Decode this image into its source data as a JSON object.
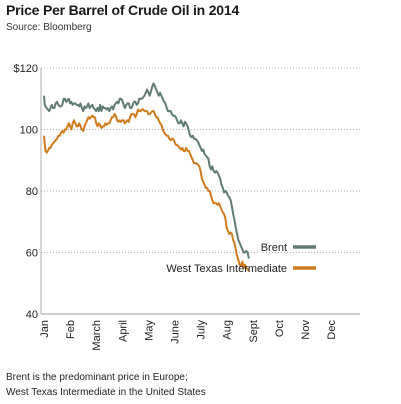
{
  "chart_data": {
    "type": "line",
    "title": "Price Per Barrel of Crude Oil in 2014",
    "subtitle": "Source: Bloomberg",
    "xlabel": "",
    "ylabel": "",
    "ylim": [
      40,
      120
    ],
    "y_ticks": [
      40,
      60,
      80,
      100,
      120
    ],
    "y_tick_labels": [
      "40",
      "60",
      "80",
      "100",
      "$120"
    ],
    "x_tick_labels": [
      "Jan",
      "Feb",
      "March",
      "April",
      "May",
      "June",
      "July",
      "Aug",
      "Sept",
      "Oct",
      "Nov",
      "Dec"
    ],
    "grid": "horizontal",
    "legend_position": "bottom-right",
    "series": [
      {
        "name": "Brent",
        "color": "#5f7b74",
        "points": [
          [
            0.0,
            111
          ],
          [
            0.03,
            108
          ],
          [
            0.06,
            107.5
          ],
          [
            0.1,
            107
          ],
          [
            0.15,
            106.5
          ],
          [
            0.2,
            106
          ],
          [
            0.25,
            107
          ],
          [
            0.3,
            108
          ],
          [
            0.35,
            107
          ],
          [
            0.4,
            107
          ],
          [
            0.45,
            108.5
          ],
          [
            0.5,
            109
          ],
          [
            0.55,
            108
          ],
          [
            0.6,
            107.5
          ],
          [
            0.65,
            107.5
          ],
          [
            0.7,
            108
          ],
          [
            0.75,
            110
          ],
          [
            0.8,
            110
          ],
          [
            0.85,
            109
          ],
          [
            0.9,
            109.5
          ],
          [
            0.95,
            110
          ],
          [
            1.0,
            108.5
          ],
          [
            1.05,
            109
          ],
          [
            1.1,
            108
          ],
          [
            1.15,
            108.5
          ],
          [
            1.2,
            108.5
          ],
          [
            1.25,
            108
          ],
          [
            1.3,
            108
          ],
          [
            1.35,
            107.5
          ],
          [
            1.4,
            108.5
          ],
          [
            1.45,
            107
          ],
          [
            1.5,
            106
          ],
          [
            1.55,
            107.5
          ],
          [
            1.6,
            107
          ],
          [
            1.65,
            107.5
          ],
          [
            1.7,
            108.5
          ],
          [
            1.75,
            107
          ],
          [
            1.8,
            107.5
          ],
          [
            1.85,
            108
          ],
          [
            1.9,
            107
          ],
          [
            1.95,
            106.5
          ],
          [
            2.0,
            106
          ],
          [
            2.05,
            107
          ],
          [
            2.1,
            106
          ],
          [
            2.15,
            108
          ],
          [
            2.2,
            106
          ],
          [
            2.25,
            107.5
          ],
          [
            2.3,
            107
          ],
          [
            2.35,
            107
          ],
          [
            2.4,
            106.5
          ],
          [
            2.45,
            107
          ],
          [
            2.5,
            106
          ],
          [
            2.55,
            107
          ],
          [
            2.6,
            107.5
          ],
          [
            2.65,
            106.5
          ],
          [
            2.7,
            108
          ],
          [
            2.75,
            108.5
          ],
          [
            2.8,
            109
          ],
          [
            2.85,
            108.5
          ],
          [
            2.9,
            110
          ],
          [
            2.95,
            110
          ],
          [
            3.0,
            109.5
          ],
          [
            3.05,
            108
          ],
          [
            3.1,
            107
          ],
          [
            3.15,
            108
          ],
          [
            3.2,
            108.5
          ],
          [
            3.25,
            108.5
          ],
          [
            3.3,
            107
          ],
          [
            3.35,
            107
          ],
          [
            3.4,
            108
          ],
          [
            3.45,
            109
          ],
          [
            3.5,
            109
          ],
          [
            3.55,
            108
          ],
          [
            3.6,
            108.5
          ],
          [
            3.65,
            110
          ],
          [
            3.7,
            110
          ],
          [
            3.75,
            110
          ],
          [
            3.8,
            110.5
          ],
          [
            3.85,
            111
          ],
          [
            3.9,
            112
          ],
          [
            3.95,
            113
          ],
          [
            4.0,
            112
          ],
          [
            4.05,
            111
          ],
          [
            4.1,
            112.5
          ],
          [
            4.15,
            114
          ],
          [
            4.2,
            115
          ],
          [
            4.25,
            114
          ],
          [
            4.3,
            113
          ],
          [
            4.35,
            112
          ],
          [
            4.4,
            111
          ],
          [
            4.45,
            112
          ],
          [
            4.5,
            111
          ],
          [
            4.55,
            110
          ],
          [
            4.6,
            109
          ],
          [
            4.65,
            108.5
          ],
          [
            4.7,
            107
          ],
          [
            4.75,
            106
          ],
          [
            4.8,
            106
          ],
          [
            4.85,
            106
          ],
          [
            4.9,
            105
          ],
          [
            4.95,
            104.5
          ],
          [
            5.0,
            104.5
          ],
          [
            5.05,
            104
          ],
          [
            5.1,
            103
          ],
          [
            5.15,
            102
          ],
          [
            5.2,
            102
          ],
          [
            5.25,
            103
          ],
          [
            5.3,
            102
          ],
          [
            5.35,
            101
          ],
          [
            5.4,
            102.5
          ],
          [
            5.45,
            102
          ],
          [
            5.5,
            101
          ],
          [
            5.55,
            99.5
          ],
          [
            5.6,
            98
          ],
          [
            5.65,
            97.5
          ],
          [
            5.7,
            98
          ],
          [
            5.75,
            97
          ],
          [
            5.8,
            97
          ],
          [
            5.85,
            96.5
          ],
          [
            5.9,
            96
          ],
          [
            5.95,
            95
          ],
          [
            6.0,
            94
          ],
          [
            6.05,
            93
          ],
          [
            6.1,
            93.5
          ],
          [
            6.15,
            92
          ],
          [
            6.2,
            91.5
          ],
          [
            6.25,
            91
          ],
          [
            6.3,
            90.5
          ],
          [
            6.35,
            88
          ],
          [
            6.4,
            87
          ],
          [
            6.45,
            88
          ],
          [
            6.5,
            86.5
          ],
          [
            6.55,
            86
          ],
          [
            6.6,
            86.5
          ],
          [
            6.65,
            86
          ],
          [
            6.7,
            85
          ],
          [
            6.75,
            84
          ],
          [
            6.8,
            82
          ],
          [
            6.85,
            81
          ],
          [
            6.9,
            79.5
          ],
          [
            6.95,
            80
          ],
          [
            7.0,
            79.5
          ],
          [
            7.05,
            78.5
          ],
          [
            7.1,
            78
          ],
          [
            7.15,
            77
          ],
          [
            7.2,
            75
          ],
          [
            7.25,
            72.5
          ],
          [
            7.3,
            70.5
          ],
          [
            7.35,
            68
          ],
          [
            7.4,
            66
          ],
          [
            7.45,
            64
          ],
          [
            7.5,
            63
          ],
          [
            7.55,
            62
          ],
          [
            7.6,
            61
          ],
          [
            7.65,
            60
          ],
          [
            7.7,
            60
          ],
          [
            7.75,
            60.5
          ],
          [
            7.8,
            60
          ],
          [
            7.85,
            58
          ]
        ]
      },
      {
        "name": "West Texas Intermediate",
        "color": "#d07a1e",
        "points": [
          [
            0.0,
            98
          ],
          [
            0.03,
            95
          ],
          [
            0.06,
            93
          ],
          [
            0.1,
            92.5
          ],
          [
            0.15,
            93
          ],
          [
            0.2,
            94
          ],
          [
            0.25,
            94
          ],
          [
            0.3,
            95
          ],
          [
            0.35,
            95.5
          ],
          [
            0.4,
            96
          ],
          [
            0.45,
            96.5
          ],
          [
            0.5,
            97
          ],
          [
            0.55,
            98
          ],
          [
            0.6,
            98
          ],
          [
            0.65,
            99
          ],
          [
            0.7,
            99.5
          ],
          [
            0.75,
            99
          ],
          [
            0.8,
            100
          ],
          [
            0.85,
            100
          ],
          [
            0.9,
            101
          ],
          [
            0.95,
            102
          ],
          [
            1.0,
            101
          ],
          [
            1.05,
            100
          ],
          [
            1.1,
            102
          ],
          [
            1.15,
            103
          ],
          [
            1.2,
            102
          ],
          [
            1.25,
            101
          ],
          [
            1.3,
            101
          ],
          [
            1.35,
            102
          ],
          [
            1.4,
            101
          ],
          [
            1.45,
            100
          ],
          [
            1.5,
            99.5
          ],
          [
            1.55,
            101
          ],
          [
            1.6,
            102
          ],
          [
            1.65,
            103
          ],
          [
            1.7,
            104
          ],
          [
            1.75,
            103.5
          ],
          [
            1.8,
            104
          ],
          [
            1.85,
            104.5
          ],
          [
            1.9,
            104
          ],
          [
            1.95,
            104
          ],
          [
            2.0,
            102
          ],
          [
            2.05,
            101
          ],
          [
            2.1,
            102
          ],
          [
            2.15,
            101.5
          ],
          [
            2.2,
            100.5
          ],
          [
            2.25,
            101
          ],
          [
            2.3,
            101
          ],
          [
            2.35,
            102
          ],
          [
            2.4,
            101.5
          ],
          [
            2.45,
            102
          ],
          [
            2.5,
            102
          ],
          [
            2.55,
            103
          ],
          [
            2.6,
            104
          ],
          [
            2.65,
            104
          ],
          [
            2.7,
            105
          ],
          [
            2.75,
            104.5
          ],
          [
            2.8,
            103
          ],
          [
            2.85,
            102.5
          ],
          [
            2.9,
            103
          ],
          [
            2.95,
            102.5
          ],
          [
            3.0,
            103
          ],
          [
            3.05,
            103
          ],
          [
            3.1,
            102
          ],
          [
            3.15,
            102.5
          ],
          [
            3.2,
            103
          ],
          [
            3.25,
            102.5
          ],
          [
            3.3,
            104
          ],
          [
            3.35,
            105
          ],
          [
            3.4,
            105
          ],
          [
            3.45,
            105
          ],
          [
            3.5,
            104
          ],
          [
            3.55,
            105
          ],
          [
            3.6,
            106.5
          ],
          [
            3.65,
            106
          ],
          [
            3.7,
            106
          ],
          [
            3.75,
            106.5
          ],
          [
            3.8,
            106.5
          ],
          [
            3.85,
            106
          ],
          [
            3.9,
            106
          ],
          [
            3.95,
            106
          ],
          [
            4.0,
            105
          ],
          [
            4.05,
            105
          ],
          [
            4.1,
            105.5
          ],
          [
            4.15,
            106
          ],
          [
            4.2,
            106
          ],
          [
            4.25,
            105
          ],
          [
            4.3,
            104
          ],
          [
            4.35,
            104
          ],
          [
            4.4,
            103
          ],
          [
            4.45,
            102
          ],
          [
            4.5,
            101.5
          ],
          [
            4.55,
            100
          ],
          [
            4.6,
            99
          ],
          [
            4.65,
            98.5
          ],
          [
            4.7,
            98
          ],
          [
            4.75,
            98
          ],
          [
            4.8,
            97
          ],
          [
            4.85,
            96.5
          ],
          [
            4.9,
            97
          ],
          [
            4.95,
            97
          ],
          [
            5.0,
            96
          ],
          [
            5.05,
            95
          ],
          [
            5.1,
            95
          ],
          [
            5.15,
            94.5
          ],
          [
            5.2,
            94
          ],
          [
            5.25,
            93.5
          ],
          [
            5.3,
            94
          ],
          [
            5.35,
            93
          ],
          [
            5.4,
            93
          ],
          [
            5.45,
            94
          ],
          [
            5.5,
            93
          ],
          [
            5.55,
            93
          ],
          [
            5.6,
            92
          ],
          [
            5.65,
            91
          ],
          [
            5.7,
            90
          ],
          [
            5.75,
            89
          ],
          [
            5.8,
            89
          ],
          [
            5.85,
            89
          ],
          [
            5.9,
            88.5
          ],
          [
            5.95,
            88
          ],
          [
            6.0,
            86.5
          ],
          [
            6.05,
            84
          ],
          [
            6.1,
            83
          ],
          [
            6.15,
            82
          ],
          [
            6.2,
            81
          ],
          [
            6.25,
            81
          ],
          [
            6.3,
            80
          ],
          [
            6.35,
            80
          ],
          [
            6.4,
            78.5
          ],
          [
            6.45,
            77
          ],
          [
            6.5,
            76
          ],
          [
            6.55,
            76
          ],
          [
            6.6,
            76
          ],
          [
            6.65,
            75.5
          ],
          [
            6.7,
            76
          ],
          [
            6.75,
            75
          ],
          [
            6.8,
            74
          ],
          [
            6.85,
            73
          ],
          [
            6.9,
            72.5
          ],
          [
            6.95,
            71
          ],
          [
            7.0,
            68
          ],
          [
            7.05,
            67
          ],
          [
            7.1,
            66
          ],
          [
            7.15,
            66.5
          ],
          [
            7.2,
            66
          ],
          [
            7.25,
            64
          ],
          [
            7.3,
            63
          ],
          [
            7.35,
            61
          ],
          [
            7.4,
            59
          ],
          [
            7.45,
            57.5
          ],
          [
            7.5,
            56
          ],
          [
            7.55,
            55.5
          ],
          [
            7.6,
            57
          ],
          [
            7.65,
            55
          ],
          [
            7.7,
            56
          ],
          [
            7.75,
            55
          ],
          [
            7.8,
            54.5
          ],
          [
            7.85,
            54
          ]
        ]
      }
    ],
    "footnote_lines": [
      "Brent is the predominant price in Europe;",
      "West Texas Intermediate in the United States"
    ]
  }
}
